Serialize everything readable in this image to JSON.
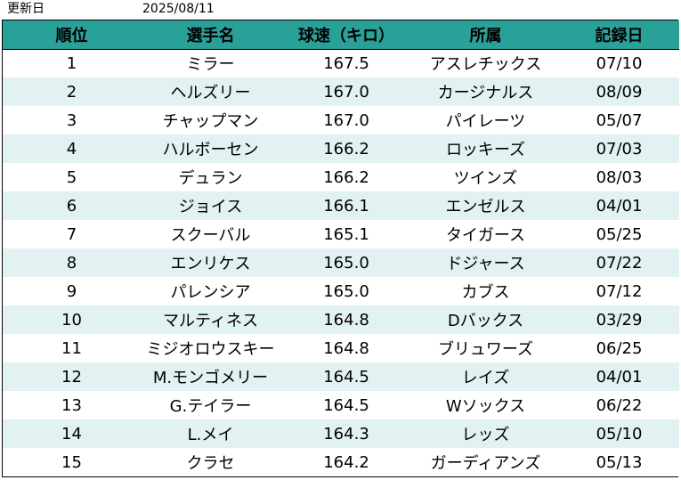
{
  "meta": {
    "updated_label": "更新日",
    "updated_date": "2025/08/11"
  },
  "colors": {
    "header_bg": "#2aa198",
    "stripe_bg": "#e2f1f1",
    "plain_bg": "#ffffff"
  },
  "table": {
    "headers": {
      "rank": "順位",
      "player": "選手名",
      "speed": "球速（キロ）",
      "team": "所属",
      "date": "記録日"
    },
    "rows": [
      {
        "rank": "1",
        "player": "ミラー",
        "speed": "167.5",
        "team": "アスレチックス",
        "date": "07/10"
      },
      {
        "rank": "2",
        "player": "ヘルズリー",
        "speed": "167.0",
        "team": "カージナルス",
        "date": "08/09"
      },
      {
        "rank": "3",
        "player": "チャップマン",
        "speed": "167.0",
        "team": "パイレーツ",
        "date": "05/07"
      },
      {
        "rank": "4",
        "player": "ハルボーセン",
        "speed": "166.2",
        "team": "ロッキーズ",
        "date": "07/03"
      },
      {
        "rank": "5",
        "player": "デュラン",
        "speed": "166.2",
        "team": "ツインズ",
        "date": "08/03"
      },
      {
        "rank": "6",
        "player": "ジョイス",
        "speed": "166.1",
        "team": "エンゼルス",
        "date": "04/01"
      },
      {
        "rank": "7",
        "player": "スクーバル",
        "speed": "165.1",
        "team": "タイガース",
        "date": "05/25"
      },
      {
        "rank": "8",
        "player": "エンリケス",
        "speed": "165.0",
        "team": "ドジャース",
        "date": "07/22"
      },
      {
        "rank": "9",
        "player": "パレンシア",
        "speed": "165.0",
        "team": "カブス",
        "date": "07/12"
      },
      {
        "rank": "10",
        "player": "マルティネス",
        "speed": "164.8",
        "team": "Dバックス",
        "date": "03/29"
      },
      {
        "rank": "11",
        "player": "ミジオロウスキー",
        "speed": "164.8",
        "team": "ブリュワーズ",
        "date": "06/25"
      },
      {
        "rank": "12",
        "player": "M.モンゴメリー",
        "speed": "164.5",
        "team": "レイズ",
        "date": "04/01"
      },
      {
        "rank": "13",
        "player": "G.テイラー",
        "speed": "164.5",
        "team": "Wソックス",
        "date": "06/22"
      },
      {
        "rank": "14",
        "player": "L.メイ",
        "speed": "164.3",
        "team": "レッズ",
        "date": "05/10"
      },
      {
        "rank": "15",
        "player": "クラセ",
        "speed": "164.2",
        "team": "ガーディアンズ",
        "date": "05/13"
      }
    ]
  }
}
